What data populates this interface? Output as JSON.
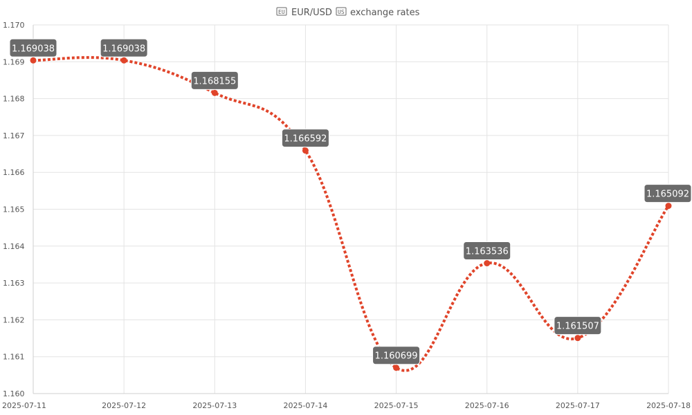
{
  "chart_data": {
    "type": "line",
    "title": "EUR/USD exchange rates",
    "title_base": "EUR/USD",
    "title_quote": "exchange rates",
    "title_icons": [
      "eu-flag-icon",
      "us-flag-icon"
    ],
    "x": [
      "2025-07-11",
      "2025-07-12",
      "2025-07-13",
      "2025-07-14",
      "2025-07-15",
      "2025-07-16",
      "2025-07-17",
      "2025-07-18"
    ],
    "series": [
      {
        "name": "",
        "values": [
          1.169038,
          1.169038,
          1.168155,
          1.166592,
          1.160699,
          1.163536,
          1.161507,
          1.165092
        ],
        "data_labels": [
          "1.169038",
          "1.169038",
          "1.168155",
          "1.166592",
          "1.160699",
          "1.163536",
          "1.161507",
          "1.165092"
        ],
        "color": "#e0442a",
        "line_style": "dotted",
        "smooth": true
      }
    ],
    "ylim": [
      1.16,
      1.17
    ],
    "yticks": [
      1.16,
      1.161,
      1.162,
      1.163,
      1.164,
      1.165,
      1.166,
      1.167,
      1.168,
      1.169,
      1.17
    ],
    "ytick_labels": [
      "1.160",
      "1.161",
      "1.162",
      "1.163",
      "1.164",
      "1.165",
      "1.166",
      "1.167",
      "1.168",
      "1.169",
      "1.170"
    ],
    "xlabel": "",
    "ylabel": "",
    "grid": true,
    "legend": "none",
    "label_box_color": "#6a6a6a"
  }
}
